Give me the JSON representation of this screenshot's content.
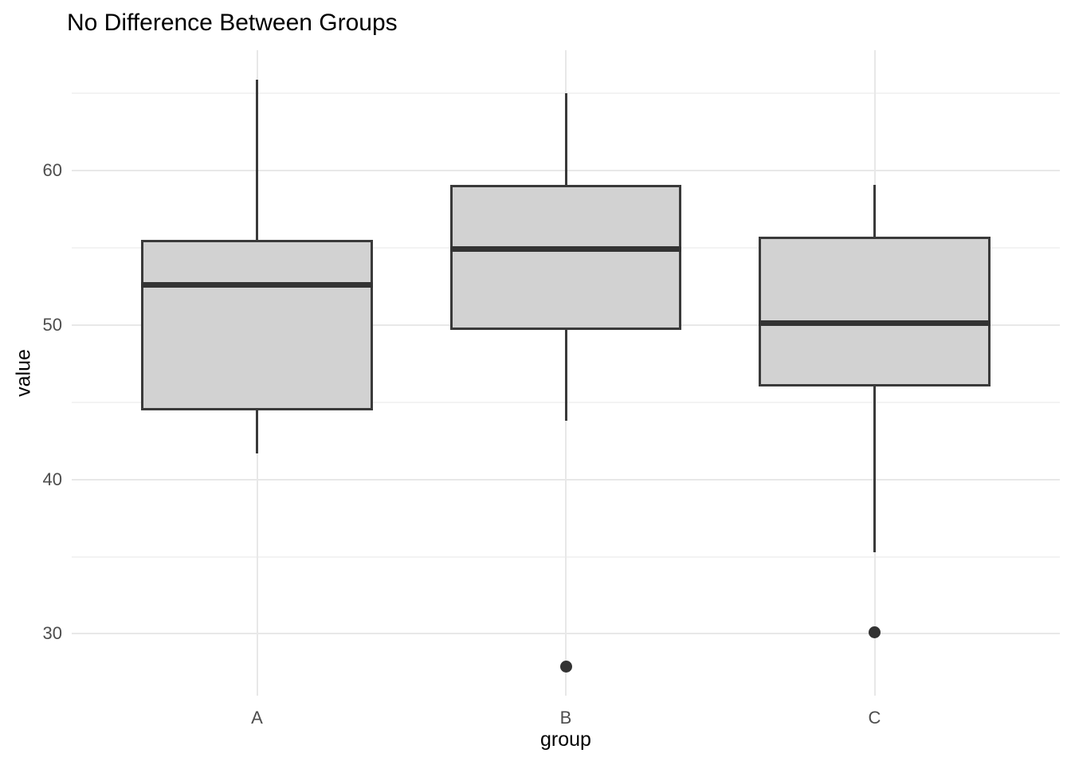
{
  "title": "No Difference Between Groups",
  "chart_data": {
    "type": "boxplot",
    "title": "No Difference Between Groups",
    "xlabel": "group",
    "ylabel": "value",
    "categories": [
      "A",
      "B",
      "C"
    ],
    "y_ticks": [
      30,
      40,
      50,
      60
    ],
    "y_minor_ticks": [
      35,
      45,
      55,
      65
    ],
    "ylim": [
      26.0,
      67.8
    ],
    "grid": "horizontal major+minor, vertical major at categories",
    "legend": "none",
    "series": [
      {
        "group": "A",
        "whisker_low": 41.7,
        "q1": 44.5,
        "median": 52.6,
        "q3": 55.5,
        "whisker_high": 65.9,
        "outliers": []
      },
      {
        "group": "B",
        "whisker_low": 43.8,
        "q1": 49.7,
        "median": 54.9,
        "q3": 59.1,
        "whisker_high": 65.0,
        "outliers": [
          27.9
        ]
      },
      {
        "group": "C",
        "whisker_low": 35.3,
        "q1": 46.0,
        "median": 50.1,
        "q3": 55.7,
        "whisker_high": 59.1,
        "outliers": [
          30.1
        ]
      }
    ],
    "colors": {
      "background": "#ffffff",
      "box_fill": "#d2d2d2",
      "box_border": "#3a3a3a",
      "median": "#333333",
      "whisker": "#3a3a3a",
      "outlier": "#333333",
      "grid_major": "#e8e8e8",
      "grid_minor": "#f3f3f3",
      "tick_label": "#4d4d4d",
      "axis_title": "#000000",
      "title": "#000000"
    }
  }
}
